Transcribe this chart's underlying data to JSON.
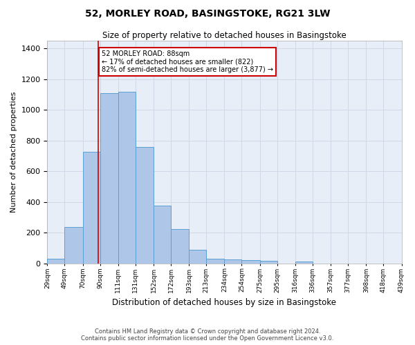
{
  "title": "52, MORLEY ROAD, BASINGSTOKE, RG21 3LW",
  "subtitle": "Size of property relative to detached houses in Basingstoke",
  "xlabel": "Distribution of detached houses by size in Basingstoke",
  "ylabel": "Number of detached properties",
  "bin_labels": [
    "29sqm",
    "49sqm",
    "70sqm",
    "90sqm",
    "111sqm",
    "131sqm",
    "152sqm",
    "172sqm",
    "193sqm",
    "213sqm",
    "234sqm",
    "254sqm",
    "275sqm",
    "295sqm",
    "316sqm",
    "336sqm",
    "357sqm",
    "377sqm",
    "398sqm",
    "418sqm",
    "439sqm"
  ],
  "bin_edges": [
    29,
    49,
    70,
    90,
    111,
    131,
    152,
    172,
    193,
    213,
    234,
    254,
    275,
    295,
    316,
    336,
    357,
    377,
    398,
    418,
    439
  ],
  "bar_heights": [
    30,
    235,
    725,
    1110,
    1120,
    760,
    375,
    225,
    90,
    30,
    25,
    20,
    15,
    0,
    12,
    0,
    0,
    0,
    0,
    0
  ],
  "bar_color": "#aec6e8",
  "bar_edge_color": "#5a9fd4",
  "property_size": 88,
  "vline_color": "#cc0000",
  "annotation_text": "52 MORLEY ROAD: 88sqm\n← 17% of detached houses are smaller (822)\n82% of semi-detached houses are larger (3,877) →",
  "annotation_box_edgecolor": "#cc0000",
  "ylim": [
    0,
    1450
  ],
  "yticks": [
    0,
    200,
    400,
    600,
    800,
    1000,
    1200,
    1400
  ],
  "plot_bg_color": "#e8eef8",
  "grid_color": "#d0d8e8",
  "footer_line1": "Contains HM Land Registry data © Crown copyright and database right 2024.",
  "footer_line2": "Contains public sector information licensed under the Open Government Licence v3.0."
}
